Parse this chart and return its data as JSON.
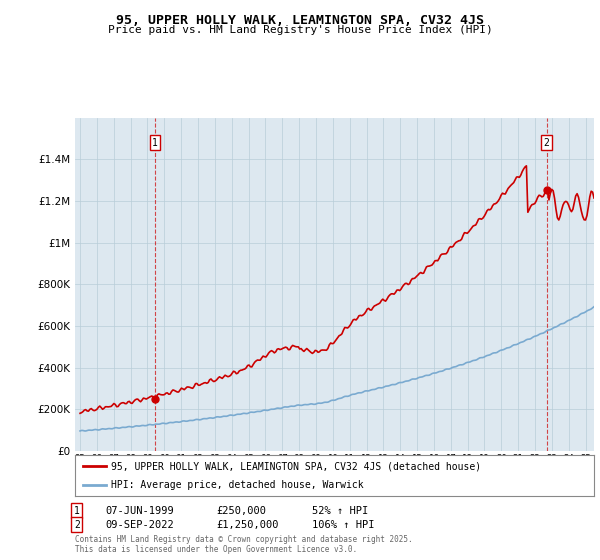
{
  "title": "95, UPPER HOLLY WALK, LEAMINGTON SPA, CV32 4JS",
  "subtitle": "Price paid vs. HM Land Registry's House Price Index (HPI)",
  "legend_property": "95, UPPER HOLLY WALK, LEAMINGTON SPA, CV32 4JS (detached house)",
  "legend_hpi": "HPI: Average price, detached house, Warwick",
  "footnote": "Contains HM Land Registry data © Crown copyright and database right 2025.\nThis data is licensed under the Open Government Licence v3.0.",
  "sale1_label": "1",
  "sale1_date_label": "07-JUN-1999",
  "sale1_price_label": "£250,000",
  "sale1_hpi_label": "52% ↑ HPI",
  "sale1_year": 1999.44,
  "sale1_price": 250000,
  "sale2_label": "2",
  "sale2_date_label": "09-SEP-2022",
  "sale2_price_label": "£1,250,000",
  "sale2_hpi_label": "106% ↑ HPI",
  "sale2_year": 2022.69,
  "sale2_price": 1250000,
  "property_color": "#cc0000",
  "hpi_color": "#7aaad0",
  "background_color": "#dde8f0",
  "grid_color": "#b8cdd8",
  "ylim": [
    0,
    1600000
  ],
  "xlim_start": 1994.7,
  "xlim_end": 2025.5,
  "yticks": [
    0,
    200000,
    400000,
    600000,
    800000,
    1000000,
    1200000,
    1400000
  ]
}
